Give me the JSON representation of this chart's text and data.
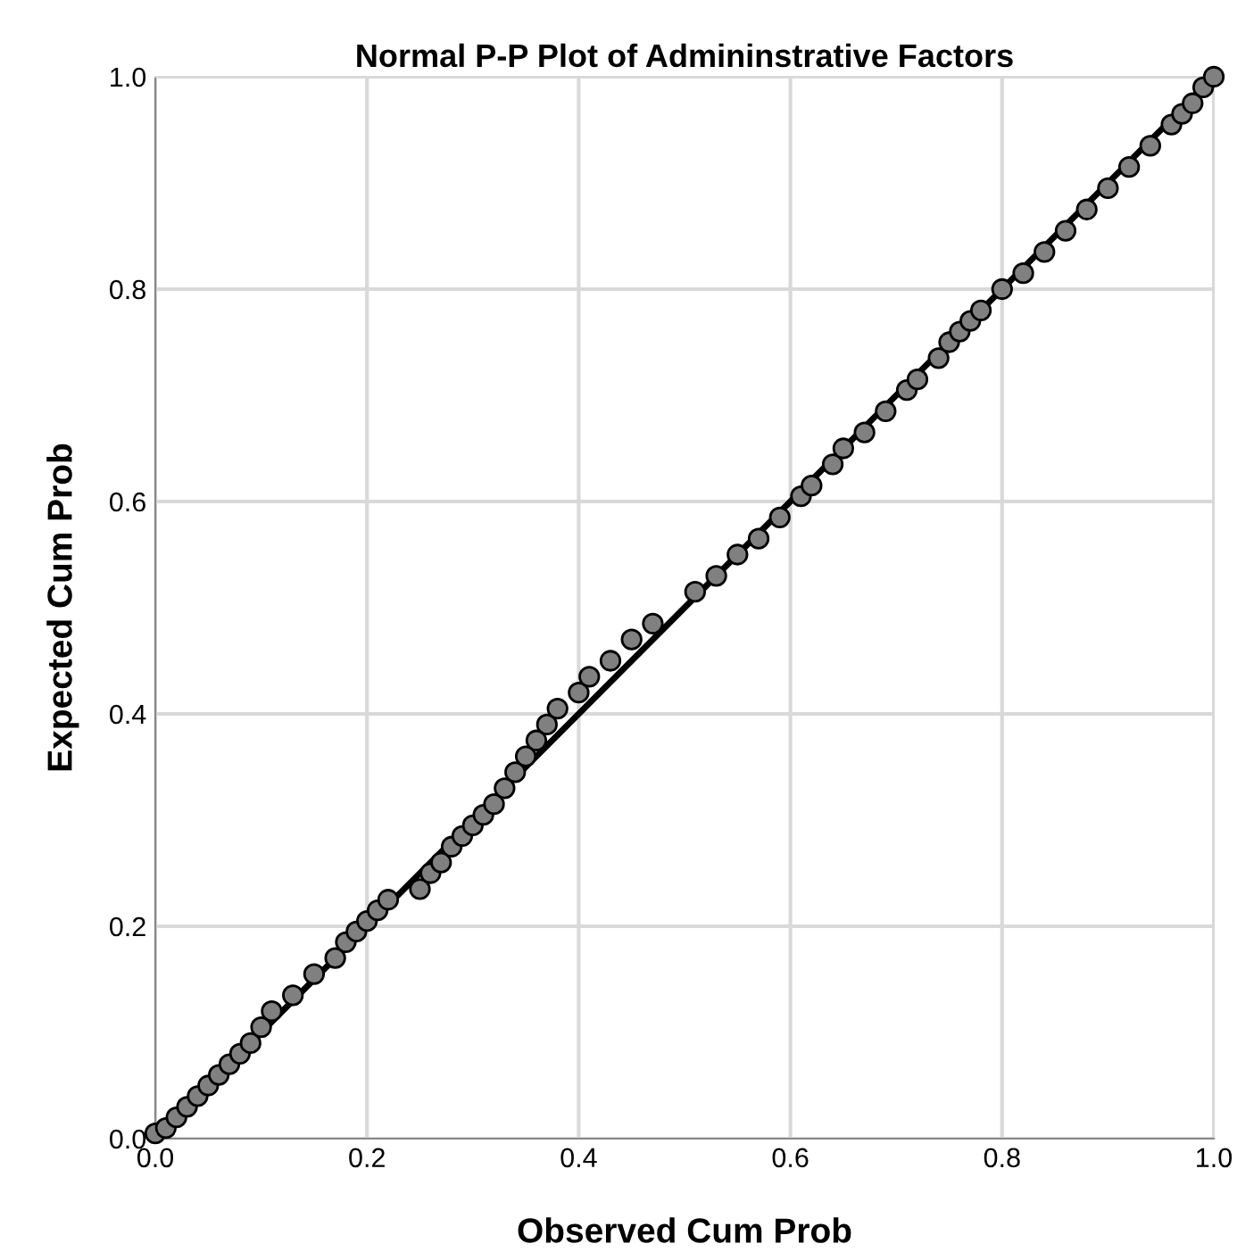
{
  "chart_data": {
    "type": "scatter",
    "title": "Normal P-P Plot of Admininstrative Factors",
    "xlabel": "Observed Cum Prob",
    "ylabel": "Expected Cum Prob",
    "xlim": [
      0,
      1
    ],
    "ylim": [
      0,
      1
    ],
    "xticks": [
      {
        "value": 0,
        "label": "0.0"
      },
      {
        "value": 0.2,
        "label": "0.2"
      },
      {
        "value": 0.4,
        "label": "0.4"
      },
      {
        "value": 0.6,
        "label": "0.6"
      },
      {
        "value": 0.8,
        "label": "0.8"
      },
      {
        "value": 1,
        "label": "1.0"
      }
    ],
    "yticks": [
      {
        "value": 0,
        "label": "0.0"
      },
      {
        "value": 0.2,
        "label": "0.2"
      },
      {
        "value": 0.4,
        "label": "0.4"
      },
      {
        "value": 0.6,
        "label": "0.6"
      },
      {
        "value": 0.8,
        "label": "0.8"
      },
      {
        "value": 1,
        "label": "1.0"
      }
    ],
    "grid": true,
    "series": [
      {
        "color": "#808080",
        "marker": "circle",
        "x": [
          0.0,
          0.01,
          0.02,
          0.03,
          0.04,
          0.05,
          0.06,
          0.07,
          0.08,
          0.09,
          0.1,
          0.11,
          0.13,
          0.15,
          0.17,
          0.18,
          0.19,
          0.2,
          0.21,
          0.22,
          0.25,
          0.26,
          0.27,
          0.28,
          0.29,
          0.3,
          0.31,
          0.32,
          0.33,
          0.34,
          0.35,
          0.36,
          0.37,
          0.38,
          0.4,
          0.41,
          0.43,
          0.45,
          0.47,
          0.51,
          0.53,
          0.55,
          0.57,
          0.59,
          0.61,
          0.62,
          0.64,
          0.65,
          0.67,
          0.69,
          0.71,
          0.72,
          0.74,
          0.75,
          0.76,
          0.77,
          0.78,
          0.8,
          0.82,
          0.84,
          0.86,
          0.88,
          0.9,
          0.92,
          0.94,
          0.96,
          0.97,
          0.98,
          0.99,
          1.0
        ],
        "values": [
          0.005,
          0.01,
          0.02,
          0.03,
          0.04,
          0.05,
          0.06,
          0.07,
          0.08,
          0.09,
          0.105,
          0.12,
          0.135,
          0.155,
          0.17,
          0.185,
          0.195,
          0.205,
          0.215,
          0.225,
          0.235,
          0.25,
          0.26,
          0.275,
          0.285,
          0.295,
          0.305,
          0.315,
          0.33,
          0.345,
          0.36,
          0.375,
          0.39,
          0.405,
          0.42,
          0.435,
          0.45,
          0.47,
          0.485,
          0.515,
          0.53,
          0.55,
          0.565,
          0.585,
          0.605,
          0.615,
          0.635,
          0.65,
          0.665,
          0.685,
          0.705,
          0.715,
          0.735,
          0.75,
          0.76,
          0.77,
          0.78,
          0.8,
          0.815,
          0.835,
          0.855,
          0.875,
          0.895,
          0.915,
          0.935,
          0.955,
          0.965,
          0.975,
          0.99,
          1.0
        ]
      },
      {
        "type": "line",
        "color": "#000000",
        "x": [
          0,
          1
        ],
        "values": [
          0,
          1
        ]
      }
    ]
  }
}
